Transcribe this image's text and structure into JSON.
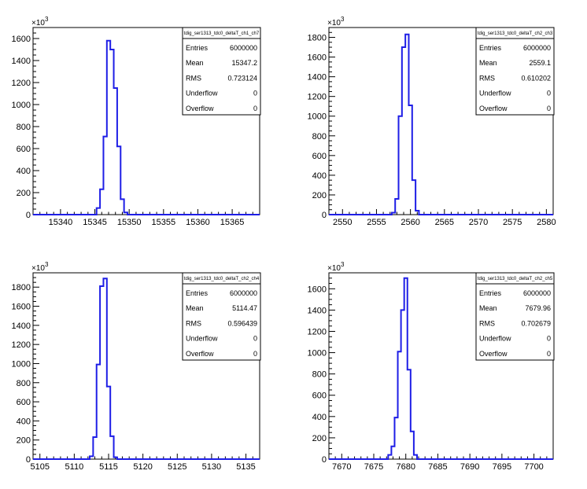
{
  "chart_data": [
    {
      "type": "histogram",
      "stats": {
        "title": "tdig_ser1313_tdc0_deltaT_ch1_ch7",
        "rows": [
          {
            "label": "Entries",
            "value": "6000000"
          },
          {
            "label": "Mean",
            "value": "15347.2"
          },
          {
            "label": "RMS",
            "value": "0.723124"
          },
          {
            "label": "Underflow",
            "value": "0"
          },
          {
            "label": "Overflow",
            "value": "0"
          }
        ]
      },
      "y_exponent_label": "10",
      "y_exponent_power": "3",
      "xlim": [
        15336,
        15369
      ],
      "ylim": [
        0,
        1700
      ],
      "x_ticks": [
        15340,
        15345,
        15350,
        15355,
        15360,
        15365
      ],
      "y_ticks": [
        0,
        200,
        400,
        600,
        800,
        1000,
        1200,
        1400,
        1600
      ],
      "bin_width": 0.5,
      "bins": [
        {
          "x": 15345.5,
          "y": 60
        },
        {
          "x": 15346.0,
          "y": 230
        },
        {
          "x": 15346.5,
          "y": 710
        },
        {
          "x": 15347.0,
          "y": 1580
        },
        {
          "x": 15347.5,
          "y": 1500
        },
        {
          "x": 15348.0,
          "y": 1150
        },
        {
          "x": 15348.5,
          "y": 620
        },
        {
          "x": 15349.0,
          "y": 140
        },
        {
          "x": 15349.5,
          "y": 20
        }
      ]
    },
    {
      "type": "histogram",
      "stats": {
        "title": "tdig_ser1313_tdc0_deltaT_ch2_ch3",
        "rows": [
          {
            "label": "Entries",
            "value": "6000000"
          },
          {
            "label": "Mean",
            "value": "2559.1"
          },
          {
            "label": "RMS",
            "value": "0.610202"
          },
          {
            "label": "Underflow",
            "value": "0"
          },
          {
            "label": "Overflow",
            "value": "0"
          }
        ]
      },
      "y_exponent_label": "10",
      "y_exponent_power": "3",
      "xlim": [
        2548,
        2581
      ],
      "ylim": [
        0,
        1900
      ],
      "x_ticks": [
        2550,
        2555,
        2560,
        2565,
        2570,
        2575,
        2580
      ],
      "y_ticks": [
        0,
        200,
        400,
        600,
        800,
        1000,
        1200,
        1400,
        1600,
        1800
      ],
      "bin_width": 0.5,
      "bins": [
        {
          "x": 2557.5,
          "y": 20
        },
        {
          "x": 2558.0,
          "y": 160
        },
        {
          "x": 2558.5,
          "y": 1000
        },
        {
          "x": 2559.0,
          "y": 1700
        },
        {
          "x": 2559.5,
          "y": 1830
        },
        {
          "x": 2560.0,
          "y": 1110
        },
        {
          "x": 2560.5,
          "y": 350
        },
        {
          "x": 2561.0,
          "y": 40
        }
      ]
    },
    {
      "type": "histogram",
      "stats": {
        "title": "tdig_ser1313_tdc0_deltaT_ch2_ch4",
        "rows": [
          {
            "label": "Entries",
            "value": "6000000"
          },
          {
            "label": "Mean",
            "value": "5114.47"
          },
          {
            "label": "RMS",
            "value": "0.596439"
          },
          {
            "label": "Underflow",
            "value": "0"
          },
          {
            "label": "Overflow",
            "value": "0"
          }
        ]
      },
      "y_exponent_label": "10",
      "y_exponent_power": "3",
      "xlim": [
        5104,
        5137
      ],
      "ylim": [
        0,
        1950
      ],
      "x_ticks": [
        5105,
        5110,
        5115,
        5120,
        5125,
        5130,
        5135
      ],
      "y_ticks": [
        0,
        200,
        400,
        600,
        800,
        1000,
        1200,
        1400,
        1600,
        1800
      ],
      "bin_width": 0.5,
      "bins": [
        {
          "x": 5112.5,
          "y": 30
        },
        {
          "x": 5113.0,
          "y": 230
        },
        {
          "x": 5113.5,
          "y": 990
        },
        {
          "x": 5114.0,
          "y": 1810
        },
        {
          "x": 5114.5,
          "y": 1890
        },
        {
          "x": 5115.0,
          "y": 760
        },
        {
          "x": 5115.5,
          "y": 240
        },
        {
          "x": 5116.0,
          "y": 20
        }
      ]
    },
    {
      "type": "histogram",
      "stats": {
        "title": "tdig_ser1313_tdc0_deltaT_ch2_ch5",
        "rows": [
          {
            "label": "Entries",
            "value": "6000000"
          },
          {
            "label": "Mean",
            "value": "7679.96"
          },
          {
            "label": "RMS",
            "value": "0.702679"
          },
          {
            "label": "Underflow",
            "value": "0"
          },
          {
            "label": "Overflow",
            "value": "0"
          }
        ]
      },
      "y_exponent_label": "10",
      "y_exponent_power": "3",
      "xlim": [
        7668,
        7703
      ],
      "ylim": [
        0,
        1750
      ],
      "x_ticks": [
        7670,
        7675,
        7680,
        7685,
        7690,
        7695,
        7700
      ],
      "y_ticks": [
        0,
        200,
        400,
        600,
        800,
        1000,
        1200,
        1400,
        1600
      ],
      "bin_width": 0.5,
      "bins": [
        {
          "x": 7677.5,
          "y": 40
        },
        {
          "x": 7678.0,
          "y": 120
        },
        {
          "x": 7678.5,
          "y": 390
        },
        {
          "x": 7679.0,
          "y": 1010
        },
        {
          "x": 7679.5,
          "y": 1400
        },
        {
          "x": 7680.0,
          "y": 1700
        },
        {
          "x": 7680.5,
          "y": 840
        },
        {
          "x": 7681.0,
          "y": 260
        },
        {
          "x": 7681.5,
          "y": 40
        }
      ]
    }
  ],
  "colors": {
    "histogram_line": "#1e1ee6",
    "axis": "#000000",
    "background": "#ffffff"
  }
}
